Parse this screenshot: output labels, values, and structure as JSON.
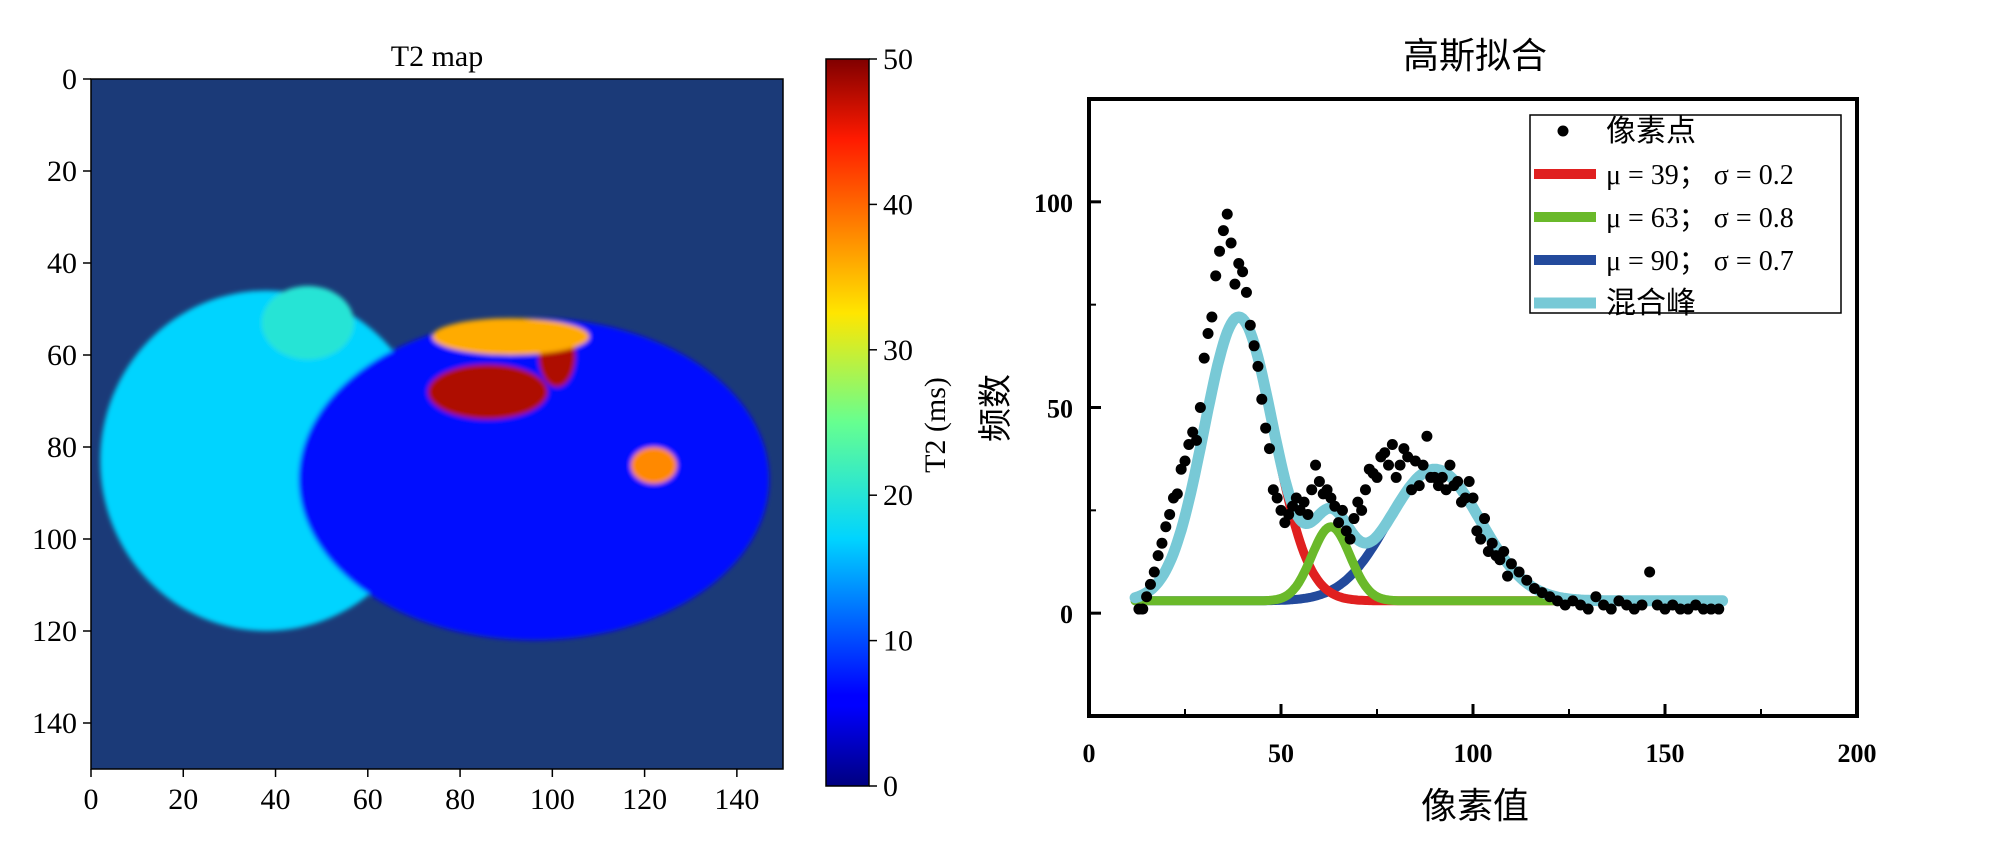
{
  "chart_data": [
    {
      "type": "heatmap",
      "title": "T2 map",
      "x_ticks": [
        "0",
        "20",
        "40",
        "60",
        "80",
        "100",
        "120",
        "140"
      ],
      "y_ticks": [
        "0",
        "20",
        "40",
        "60",
        "80",
        "100",
        "120",
        "140"
      ],
      "xlim": [
        0,
        150
      ],
      "ylim": [
        150,
        0
      ],
      "colorbar": {
        "label": "T2 (ms)",
        "ticks": [
          "0",
          "10",
          "20",
          "30",
          "40",
          "50"
        ],
        "range": [
          0,
          50
        ],
        "colormap": "jet"
      },
      "background_value": 3,
      "regions": [
        {
          "shape": "ellipse",
          "cx": 38,
          "cy": 83,
          "rx": 36,
          "ry": 37,
          "value": 17
        },
        {
          "shape": "ellipse",
          "cx": 96,
          "cy": 87,
          "rx": 51,
          "ry": 35,
          "value": 6
        },
        {
          "shape": "ellipse",
          "cx": 47,
          "cy": 53,
          "rx": 10,
          "ry": 8,
          "value": 20
        },
        {
          "shape": "ellipse",
          "cx": 86,
          "cy": 68,
          "rx": 13,
          "ry": 6,
          "value": 48
        },
        {
          "shape": "ellipse",
          "cx": 101,
          "cy": 60,
          "rx": 4,
          "ry": 7,
          "value": 48
        },
        {
          "shape": "ellipse",
          "cx": 91,
          "cy": 56,
          "rx": 17,
          "ry": 4,
          "value": 36
        },
        {
          "shape": "ellipse",
          "cx": 122,
          "cy": 84,
          "rx": 5,
          "ry": 4,
          "value": 38
        }
      ]
    },
    {
      "type": "scatter",
      "title": "高斯拟合",
      "xlabel": "像素值",
      "ylabel": "频数",
      "xlim": [
        0,
        200
      ],
      "ylim": [
        -25,
        125
      ],
      "x_ticks": [
        "0",
        "50",
        "100",
        "150",
        "200"
      ],
      "y_ticks": [
        "0",
        "50",
        "100"
      ],
      "legend_position": "top-right",
      "series": [
        {
          "name": "像素点",
          "kind": "points",
          "color": "#000000",
          "x": [
            13,
            14,
            15,
            16,
            17,
            18,
            19,
            20,
            21,
            22,
            23,
            24,
            25,
            26,
            27,
            28,
            29,
            30,
            31,
            32,
            33,
            34,
            35,
            36,
            37,
            38,
            39,
            40,
            41,
            42,
            43,
            44,
            45,
            46,
            47,
            48,
            49,
            50,
            51,
            52,
            53,
            54,
            55,
            56,
            57,
            58,
            59,
            60,
            61,
            62,
            63,
            64,
            65,
            66,
            67,
            68,
            69,
            70,
            71,
            72,
            73,
            74,
            75,
            76,
            77,
            78,
            79,
            80,
            81,
            82,
            83,
            84,
            85,
            86,
            87,
            88,
            89,
            90,
            91,
            92,
            93,
            94,
            95,
            96,
            97,
            98,
            99,
            100,
            101,
            102,
            103,
            104,
            105,
            106,
            107,
            108,
            109,
            110,
            112,
            114,
            116,
            118,
            120,
            122,
            124,
            126,
            128,
            130,
            132,
            134,
            136,
            138,
            140,
            142,
            144,
            146,
            148,
            150,
            152,
            154,
            156,
            158,
            160,
            162,
            164
          ],
          "y": [
            1,
            1,
            4,
            7,
            10,
            14,
            17,
            21,
            24,
            28,
            29,
            35,
            37,
            41,
            44,
            42,
            50,
            62,
            68,
            72,
            82,
            88,
            93,
            97,
            90,
            80,
            85,
            83,
            78,
            70,
            65,
            60,
            52,
            45,
            40,
            30,
            28,
            25,
            22,
            24,
            26,
            28,
            25,
            27,
            24,
            30,
            36,
            32,
            29,
            30,
            28,
            26,
            22,
            25,
            20,
            18,
            23,
            27,
            25,
            30,
            35,
            34,
            33,
            38,
            39,
            36,
            41,
            33,
            36,
            40,
            38,
            30,
            37,
            31,
            36,
            43,
            33,
            33,
            31,
            33,
            30,
            36,
            31,
            32,
            27,
            28,
            32,
            28,
            20,
            18,
            23,
            15,
            17,
            14,
            13,
            15,
            9,
            12,
            10,
            8,
            6,
            5,
            4,
            3,
            2,
            3,
            2,
            1,
            4,
            2,
            1,
            3,
            2,
            1,
            2,
            10,
            2,
            1,
            2,
            1,
            1,
            2,
            1,
            1,
            1
          ]
        },
        {
          "name": "μ = 39；  σ = 0.2",
          "kind": "gaussian",
          "color": "#e02020",
          "baseline": 3,
          "amplitude": 69,
          "mu": 39,
          "sd": 9,
          "x_range": [
            12,
            165
          ]
        },
        {
          "name": "μ = 63；  σ = 0.8",
          "kind": "gaussian",
          "color": "#6ab92a",
          "baseline": 3,
          "amplitude": 18,
          "mu": 63,
          "sd": 5,
          "x_range": [
            12,
            165
          ]
        },
        {
          "name": "μ = 90；  σ = 0.7",
          "kind": "gaussian",
          "color": "#234a9c",
          "baseline": 3,
          "amplitude": 32,
          "mu": 90,
          "sd": 12,
          "x_range": [
            12,
            165
          ]
        },
        {
          "name": "混合峰",
          "kind": "sum",
          "color": "#78c9d6",
          "x_range": [
            12,
            165
          ]
        }
      ]
    }
  ]
}
